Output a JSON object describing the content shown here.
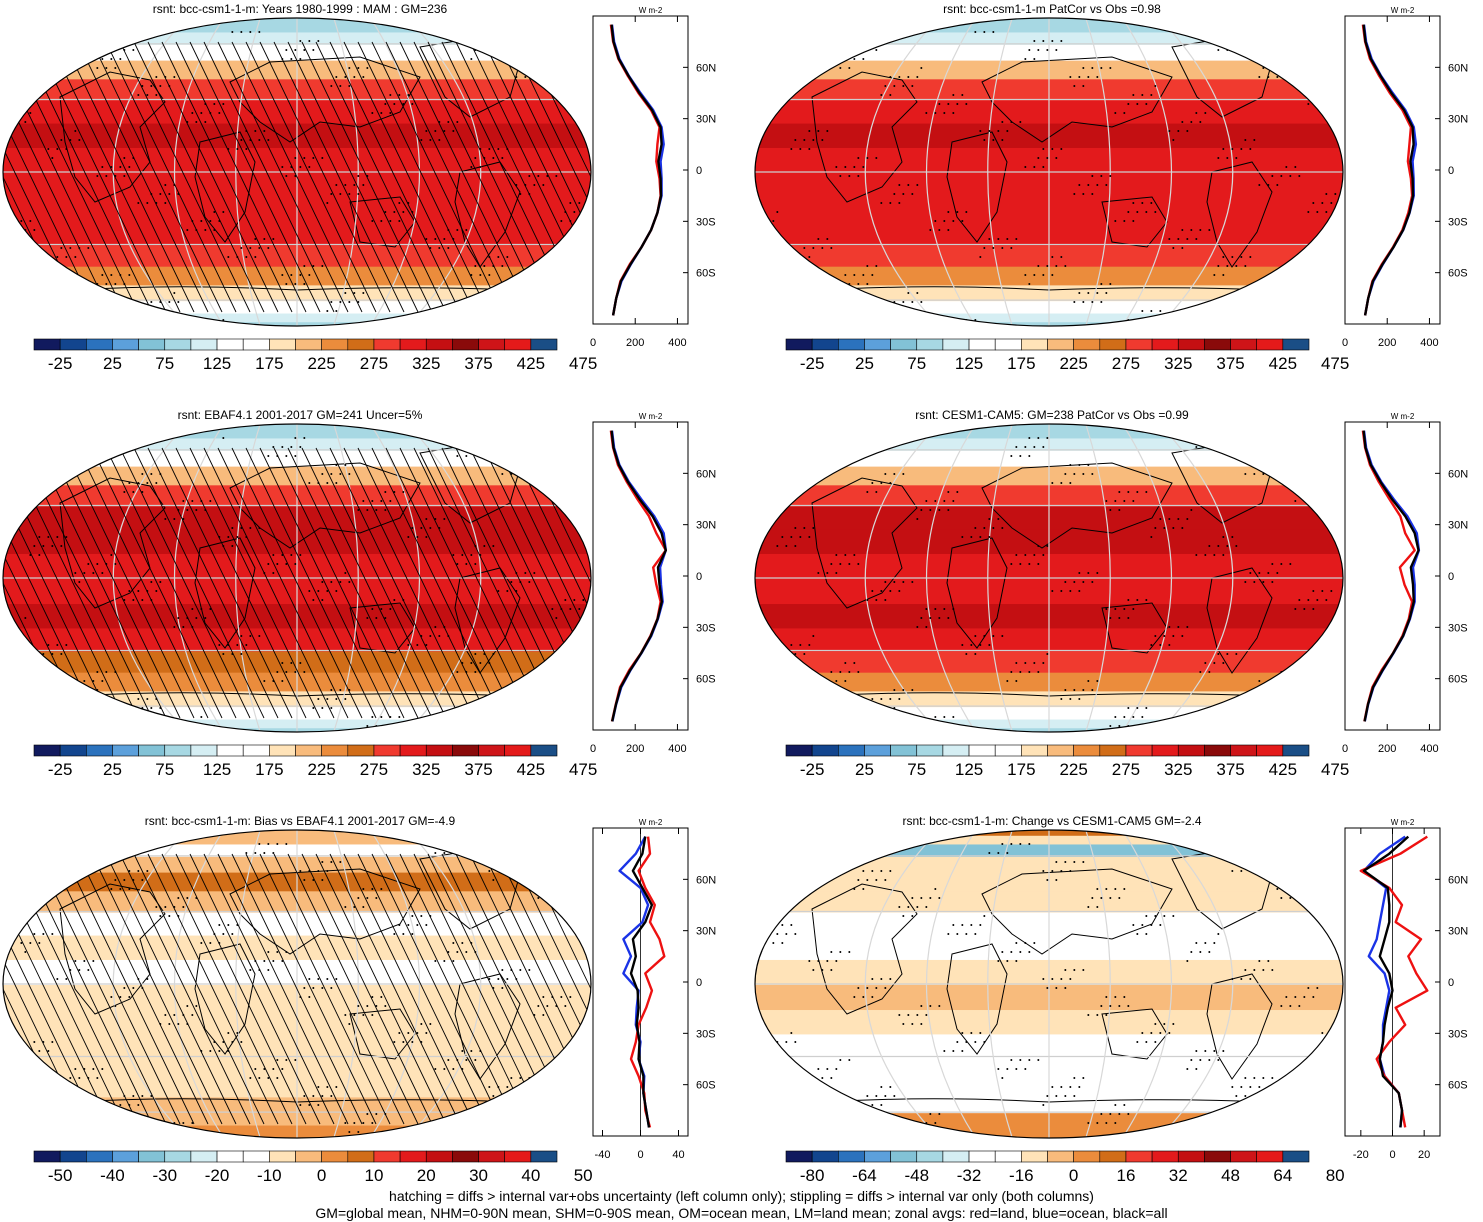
{
  "footer": {
    "line1": "hatching = diffs > internal var+obs uncertainty (left column only); stippling = diffs > internal var only (both columns)",
    "line2": "GM=global mean, NHM=0-90N mean, SHM=0-90S mean, OM=ocean mean, LM=land mean; zonal avgs: red=land, blue=ocean, black=all"
  },
  "colors": {
    "land": "#ee1111",
    "ocean": "#1a33e6",
    "all": "#000000",
    "abs_scale": [
      "#111a5e",
      "#12458e",
      "#2b72bd",
      "#5ca0db",
      "#82c2d6",
      "#a7d8e3",
      "#d5eef3",
      "#ffffff",
      "#ffffff",
      "#ffe3b8",
      "#f8bb7c",
      "#eb8c3c",
      "#d16d18",
      "#f03a2f",
      "#e31a1c",
      "#c40f12",
      "#8a0a0a",
      "#ce1418",
      "#e41a1a",
      "#1a4e86"
    ],
    "diff_scale": [
      "#111a5e",
      "#12458e",
      "#2b72bd",
      "#5ca0db",
      "#82c2d6",
      "#a7d8e3",
      "#d5eef3",
      "#ffffff",
      "#ffffff",
      "#ffe3b8",
      "#f8bb7c",
      "#eb8c3c",
      "#d16d18",
      "#f03a2f",
      "#e31a1c",
      "#c40f12",
      "#8a0a0a",
      "#ce1418",
      "#e41a1a",
      "#1a4e86"
    ]
  },
  "chart_data": [
    {
      "type": "heatmap",
      "title": "rsnt: bcc-csm1-1-m: Years 1980-1999 : MAM : GM=236",
      "colorbar_ticks": [
        "-25",
        "25",
        "75",
        "125",
        "175",
        "225",
        "275",
        "325",
        "375",
        "425",
        "475"
      ],
      "zonal_unit": "W m-2",
      "zonal_xlim": [
        0,
        450
      ],
      "zonal_xticks": [
        "0",
        "200",
        "400"
      ],
      "lat_ticks": [
        "60N",
        "30N",
        "0",
        "30S",
        "60S"
      ],
      "hatching": true,
      "zonal_lat": [
        -85,
        -75,
        -65,
        -55,
        -45,
        -35,
        -25,
        -15,
        -5,
        5,
        15,
        25,
        35,
        45,
        55,
        65,
        75,
        85
      ],
      "zonal_series": [
        {
          "name": "land",
          "values": [
            95,
            110,
            130,
            175,
            230,
            275,
            305,
            320,
            315,
            300,
            305,
            315,
            275,
            215,
            165,
            120,
            95,
            85
          ]
        },
        {
          "name": "ocean",
          "values": [
            95,
            110,
            135,
            180,
            230,
            275,
            305,
            325,
            325,
            320,
            335,
            325,
            285,
            225,
            170,
            125,
            100,
            90
          ]
        },
        {
          "name": "all",
          "values": [
            95,
            110,
            132,
            178,
            230,
            275,
            305,
            322,
            320,
            310,
            325,
            320,
            280,
            220,
            168,
            122,
            97,
            88
          ]
        }
      ]
    },
    {
      "type": "heatmap",
      "title": "rsnt: bcc-csm1-1-m PatCor vs Obs =0.98",
      "colorbar_ticks": [
        "-25",
        "25",
        "75",
        "125",
        "175",
        "225",
        "275",
        "325",
        "375",
        "425",
        "475"
      ],
      "zonal_unit": "W m-2",
      "zonal_xlim": [
        0,
        450
      ],
      "zonal_xticks": [
        "0",
        "200",
        "400"
      ],
      "lat_ticks": [
        "60N",
        "30N",
        "0",
        "30S",
        "60S"
      ],
      "hatching": false,
      "zonal_lat": [
        -85,
        -75,
        -65,
        -55,
        -45,
        -35,
        -25,
        -15,
        -5,
        5,
        15,
        25,
        35,
        45,
        55,
        65,
        75,
        85
      ],
      "zonal_series": [
        {
          "name": "land",
          "values": [
            95,
            110,
            130,
            175,
            228,
            272,
            300,
            318,
            312,
            298,
            305,
            312,
            272,
            212,
            162,
            118,
            95,
            85
          ]
        },
        {
          "name": "ocean",
          "values": [
            95,
            110,
            135,
            180,
            230,
            276,
            306,
            326,
            325,
            320,
            336,
            326,
            286,
            226,
            171,
            126,
            100,
            90
          ]
        },
        {
          "name": "all",
          "values": [
            95,
            110,
            132,
            178,
            230,
            275,
            305,
            322,
            320,
            310,
            325,
            320,
            280,
            220,
            168,
            122,
            97,
            88
          ]
        }
      ]
    },
    {
      "type": "heatmap",
      "title": "rsnt: EBAF4.1 2001-2017 GM=241 Uncer=5%",
      "colorbar_ticks": [
        "-25",
        "25",
        "75",
        "125",
        "175",
        "225",
        "275",
        "325",
        "375",
        "425",
        "475"
      ],
      "zonal_unit": "W m-2",
      "zonal_xlim": [
        0,
        450
      ],
      "zonal_xticks": [
        "0",
        "200",
        "400"
      ],
      "lat_ticks": [
        "60N",
        "30N",
        "0",
        "30S",
        "60S"
      ],
      "hatching": true,
      "zonal_lat": [
        -85,
        -75,
        -65,
        -55,
        -45,
        -35,
        -25,
        -15,
        -5,
        5,
        15,
        25,
        35,
        45,
        55,
        65,
        75,
        85
      ],
      "zonal_series": [
        {
          "name": "land",
          "values": [
            90,
            108,
            128,
            172,
            228,
            272,
            305,
            320,
            300,
            285,
            345,
            300,
            265,
            210,
            160,
            118,
            95,
            85
          ]
        },
        {
          "name": "ocean",
          "values": [
            92,
            110,
            134,
            178,
            230,
            276,
            308,
            330,
            322,
            318,
            345,
            335,
            290,
            228,
            170,
            125,
            100,
            90
          ]
        },
        {
          "name": "all",
          "values": [
            91,
            109,
            131,
            176,
            229,
            274,
            306,
            326,
            315,
            308,
            345,
            325,
            282,
            220,
            166,
            122,
            97,
            88
          ]
        }
      ]
    },
    {
      "type": "heatmap",
      "title": "rsnt: CESM1-CAM5: GM=238 PatCor vs Obs =0.99",
      "colorbar_ticks": [
        "-25",
        "25",
        "75",
        "125",
        "175",
        "225",
        "275",
        "325",
        "375",
        "425",
        "475"
      ],
      "zonal_unit": "W m-2",
      "zonal_xlim": [
        0,
        450
      ],
      "zonal_xticks": [
        "0",
        "200",
        "400"
      ],
      "lat_ticks": [
        "60N",
        "30N",
        "0",
        "30S",
        "60S"
      ],
      "hatching": false,
      "zonal_lat": [
        -85,
        -75,
        -65,
        -55,
        -45,
        -35,
        -25,
        -15,
        -5,
        5,
        15,
        25,
        35,
        45,
        55,
        65,
        75,
        85
      ],
      "zonal_series": [
        {
          "name": "land",
          "values": [
            92,
            108,
            130,
            174,
            228,
            272,
            302,
            318,
            282,
            260,
            330,
            285,
            262,
            210,
            160,
            118,
            95,
            85
          ]
        },
        {
          "name": "ocean",
          "values": [
            94,
            110,
            135,
            180,
            230,
            276,
            308,
            330,
            330,
            322,
            350,
            340,
            295,
            230,
            172,
            126,
            100,
            90
          ]
        },
        {
          "name": "all",
          "values": [
            93,
            109,
            133,
            178,
            229,
            275,
            306,
            326,
            322,
            312,
            348,
            330,
            285,
            222,
            168,
            122,
            97,
            88
          ]
        }
      ]
    },
    {
      "type": "heatmap",
      "title": "rsnt: bcc-csm1-1-m: Bias vs EBAF4.1 2001-2017 GM=-4.9",
      "colorbar_ticks": [
        "-50",
        "-40",
        "-30",
        "-20",
        "-10",
        "0",
        "10",
        "20",
        "30",
        "40",
        "50"
      ],
      "zonal_unit": "W m-2",
      "zonal_xlim": [
        -50,
        50
      ],
      "zonal_xticks": [
        "-40",
        "0",
        "40"
      ],
      "lat_ticks": [
        "60N",
        "30N",
        "0",
        "30S",
        "60S"
      ],
      "hatching": true,
      "zonal_lat": [
        -85,
        -75,
        -65,
        -55,
        -45,
        -35,
        -25,
        -15,
        -5,
        5,
        15,
        25,
        35,
        45,
        55,
        65,
        75,
        85
      ],
      "zonal_series": [
        {
          "name": "land",
          "values": [
            10,
            5,
            4,
            -2,
            -10,
            -5,
            -2,
            6,
            12,
            5,
            25,
            20,
            10,
            15,
            5,
            -2,
            10,
            8
          ]
        },
        {
          "name": "ocean",
          "values": [
            9,
            6,
            3,
            4,
            -2,
            0,
            -5,
            -4,
            -2,
            -18,
            -10,
            -18,
            2,
            8,
            0,
            -22,
            -5,
            5
          ]
        },
        {
          "name": "all",
          "values": [
            9,
            6,
            3,
            3,
            -2,
            -1,
            -4,
            -2,
            -3,
            -10,
            -5,
            -8,
            5,
            12,
            2,
            -8,
            2,
            5
          ]
        }
      ]
    },
    {
      "type": "heatmap",
      "title": "rsnt: bcc-csm1-1-m: Change vs CESM1-CAM5 GM=-2.4",
      "colorbar_ticks": [
        "-80",
        "-64",
        "-48",
        "-32",
        "-16",
        "0",
        "16",
        "32",
        "48",
        "64",
        "80"
      ],
      "zonal_unit": "W m-2",
      "zonal_xlim": [
        -30,
        30
      ],
      "zonal_xticks": [
        "-20",
        "0",
        "20"
      ],
      "lat_ticks": [
        "60N",
        "30N",
        "0",
        "30S",
        "60S"
      ],
      "hatching": false,
      "zonal_lat": [
        -85,
        -75,
        -65,
        -55,
        -45,
        -35,
        -25,
        -15,
        -5,
        5,
        15,
        25,
        35,
        45,
        55,
        65,
        75,
        85
      ],
      "zonal_series": [
        {
          "name": "land",
          "values": [
            8,
            6,
            4,
            -5,
            -10,
            -2,
            8,
            2,
            22,
            15,
            10,
            18,
            2,
            6,
            -2,
            -20,
            5,
            22
          ]
        },
        {
          "name": "ocean",
          "values": [
            5,
            6,
            4,
            -5,
            -8,
            -6,
            -6,
            -4,
            -2,
            -5,
            -15,
            -10,
            -8,
            -6,
            -4,
            -18,
            -8,
            8
          ]
        },
        {
          "name": "all",
          "values": [
            5,
            6,
            4,
            -6,
            -8,
            -6,
            -5,
            -3,
            0,
            -2,
            -8,
            -5,
            -2,
            -2,
            -3,
            -18,
            -2,
            10
          ]
        }
      ]
    }
  ]
}
